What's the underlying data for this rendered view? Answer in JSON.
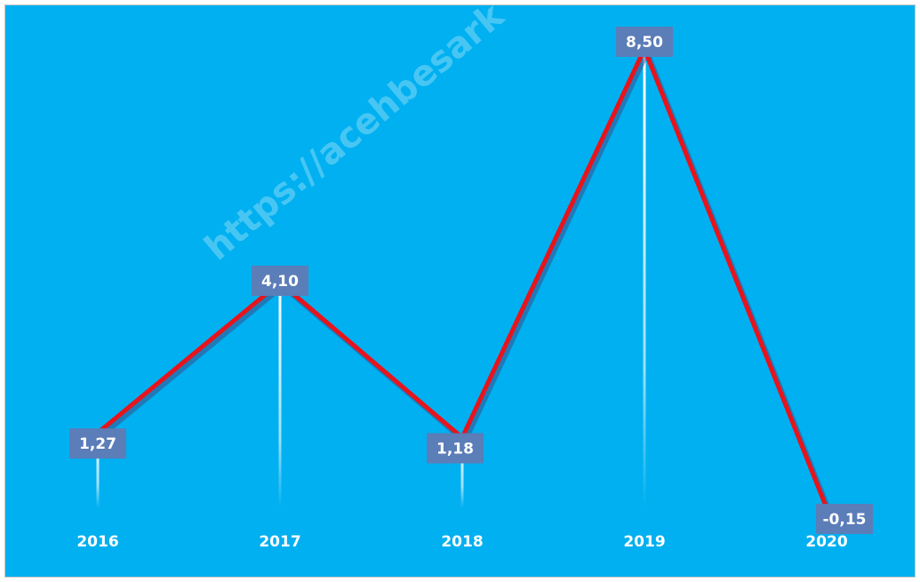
{
  "chart_data": {
    "type": "line",
    "categories": [
      "2016",
      "2017",
      "2018",
      "2019",
      "2020"
    ],
    "values": [
      1.27,
      4.1,
      1.18,
      8.5,
      -0.15
    ],
    "value_labels": [
      "1,27",
      "4,10",
      "1,18",
      "8,50",
      "-0,15"
    ],
    "color": "#e8141c",
    "label_color": "#5b7db8",
    "background": "#00b0f0",
    "drop_lines": true,
    "annotations": [
      "https://acehbesark"
    ]
  }
}
